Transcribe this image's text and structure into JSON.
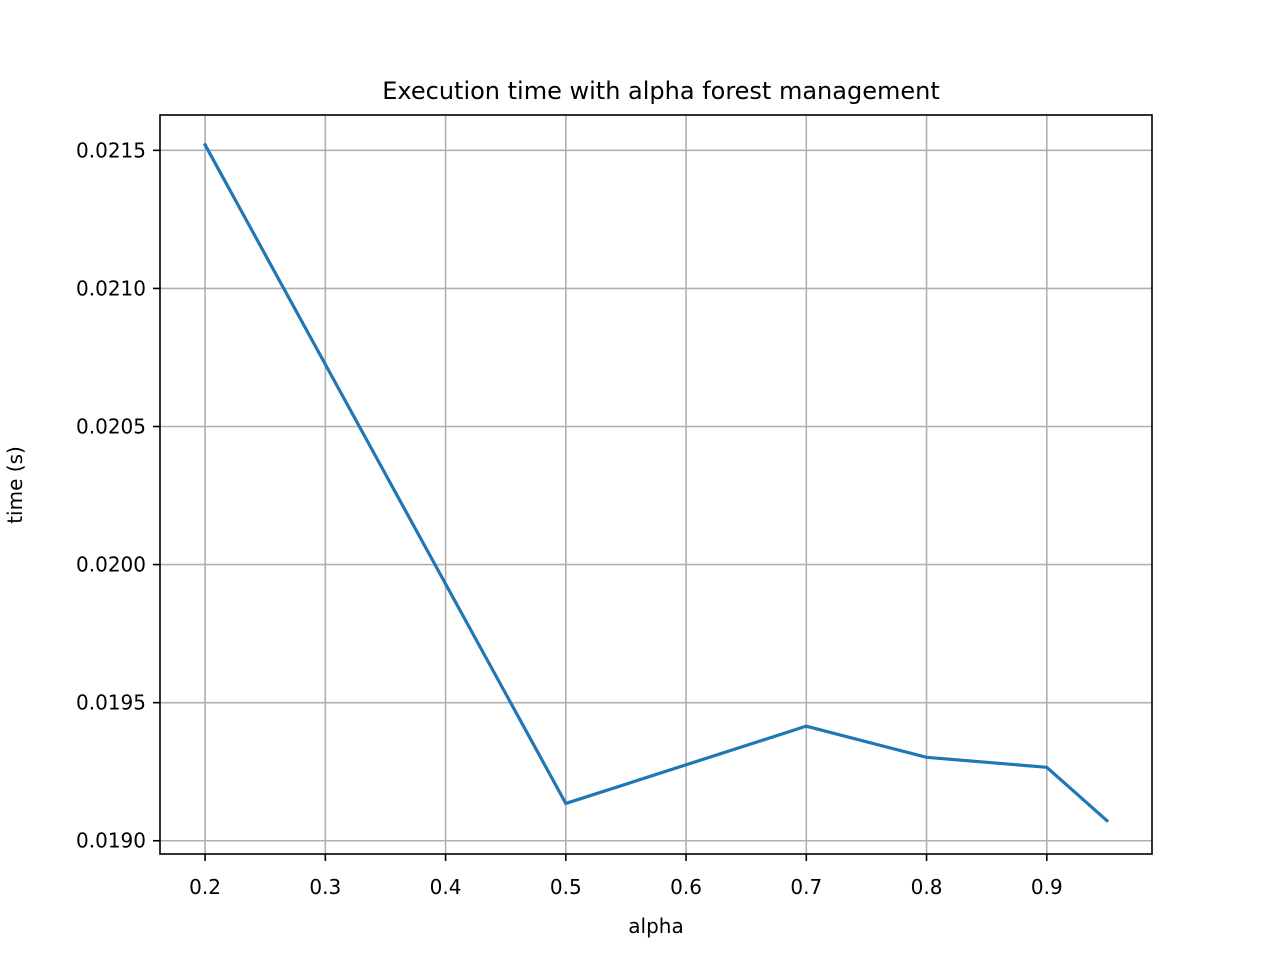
{
  "chart_data": {
    "type": "line",
    "title": "Execution time with alpha forest management",
    "xlabel": "alpha",
    "ylabel": "time (s)",
    "xlim": [
      0.1625,
      0.9875
    ],
    "ylim": [
      0.018952,
      0.021628
    ],
    "xticks": [
      0.2,
      0.3,
      0.4,
      0.5,
      0.6,
      0.7,
      0.8,
      0.9
    ],
    "xtick_labels": [
      "0.2",
      "0.3",
      "0.4",
      "0.5",
      "0.6",
      "0.7",
      "0.8",
      "0.9"
    ],
    "yticks": [
      0.019,
      0.0195,
      0.02,
      0.0205,
      0.021,
      0.0215
    ],
    "ytick_labels": [
      "0.0190",
      "0.0195",
      "0.0200",
      "0.0205",
      "0.0210",
      "0.0215"
    ],
    "grid": true,
    "series": [
      {
        "color": "#1f77b4",
        "x": [
          0.2,
          0.5,
          0.7,
          0.8,
          0.9,
          0.95
        ],
        "y": [
          0.02152,
          0.019135,
          0.019415,
          0.019302,
          0.019266,
          0.019073
        ]
      }
    ]
  }
}
